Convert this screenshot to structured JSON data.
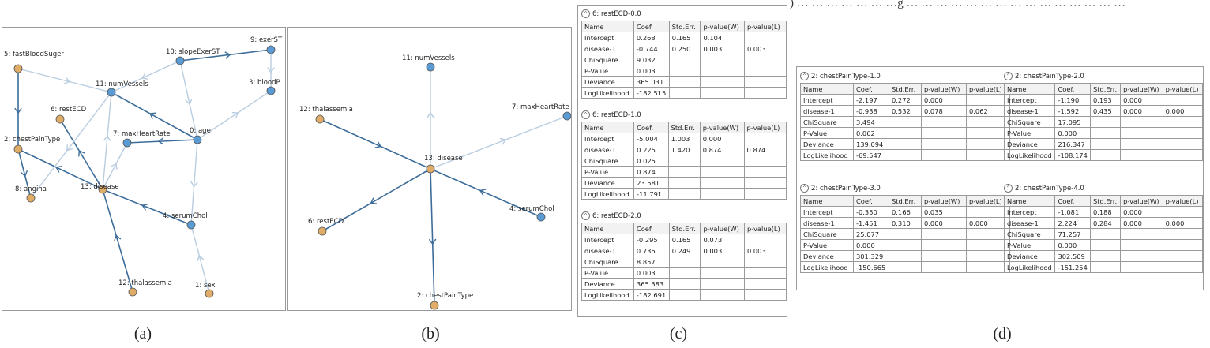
{
  "top_text": ") … … … … … … …g … … … … … … … … … … … … … … …",
  "captions": [
    "(a)",
    "(b)",
    "(c)",
    "(d)"
  ],
  "graph_a": {
    "nodes": [
      {
        "label": "5: fastBloodSuger",
        "color": "orange"
      },
      {
        "label": "10: slopeExerST",
        "color": "blue"
      },
      {
        "label": "9: exerST",
        "color": "blue"
      },
      {
        "label": "3: bloodP",
        "color": "blue"
      },
      {
        "label": "11: numVessels",
        "color": "blue"
      },
      {
        "label": "6: restECD",
        "color": "orange"
      },
      {
        "label": "7: maxHeartRate",
        "color": "blue"
      },
      {
        "label": "0: age",
        "color": "blue"
      },
      {
        "label": "2: chestPainType",
        "color": "orange"
      },
      {
        "label": "8: angina",
        "color": "orange"
      },
      {
        "label": "13: disease",
        "color": "orange"
      },
      {
        "label": "4: serumChol",
        "color": "blue"
      },
      {
        "label": "12: thalassemia",
        "color": "orange"
      },
      {
        "label": "1: sex",
        "color": "orange"
      }
    ]
  },
  "graph_b": {
    "nodes": [
      {
        "label": "11: numVessels",
        "color": "blue"
      },
      {
        "label": "7: maxHeartRate",
        "color": "blue"
      },
      {
        "label": "12: thalassemia",
        "color": "orange"
      },
      {
        "label": "13: disease",
        "color": "orange"
      },
      {
        "label": "4: serumChol",
        "color": "blue"
      },
      {
        "label": "6: restECD",
        "color": "orange"
      },
      {
        "label": "2: chestPainType",
        "color": "orange"
      }
    ]
  },
  "stat_header": [
    "Name",
    "Coef.",
    "Std.Err.",
    "p-value(W)",
    "p-value(L)"
  ],
  "tables_c": [
    {
      "title": "6: restECD-0.0",
      "rows": [
        [
          "Intercept",
          "0.268",
          "0.165",
          "0.104",
          ""
        ],
        [
          "disease-1",
          "-0.744",
          "0.250",
          "0.003",
          "0.003"
        ],
        [
          "ChiSquare",
          "9.032",
          "",
          "",
          ""
        ],
        [
          "P-Value",
          "0.003",
          "",
          "",
          ""
        ],
        [
          "Deviance",
          "365.031",
          "",
          "",
          ""
        ],
        [
          "LogLikelihood",
          "-182.515",
          "",
          "",
          ""
        ]
      ]
    },
    {
      "title": "6: restECD-1.0",
      "rows": [
        [
          "Intercept",
          "-5.004",
          "1.003",
          "0.000",
          ""
        ],
        [
          "disease-1",
          "0.225",
          "1.420",
          "0.874",
          "0.874"
        ],
        [
          "ChiSquare",
          "0.025",
          "",
          "",
          ""
        ],
        [
          "P-Value",
          "0.874",
          "",
          "",
          ""
        ],
        [
          "Deviance",
          "23.581",
          "",
          "",
          ""
        ],
        [
          "LogLikelihood",
          "-11.791",
          "",
          "",
          ""
        ]
      ]
    },
    {
      "title": "6: restECD-2.0",
      "rows": [
        [
          "Intercept",
          "-0.295",
          "0.165",
          "0.073",
          ""
        ],
        [
          "disease-1",
          "0.736",
          "0.249",
          "0.003",
          "0.003"
        ],
        [
          "ChiSquare",
          "8.857",
          "",
          "",
          ""
        ],
        [
          "P-Value",
          "0.003",
          "",
          "",
          ""
        ],
        [
          "Deviance",
          "365.383",
          "",
          "",
          ""
        ],
        [
          "LogLikelihood",
          "-182.691",
          "",
          "",
          ""
        ]
      ]
    }
  ],
  "tables_d": [
    {
      "title": "2: chestPainType-1.0",
      "rows": [
        [
          "Intercept",
          "-2.197",
          "0.272",
          "0.000",
          ""
        ],
        [
          "disease-1",
          "-0.938",
          "0.532",
          "0.078",
          "0.062"
        ],
        [
          "ChiSquare",
          "3.494",
          "",
          "",
          ""
        ],
        [
          "P-Value",
          "0.062",
          "",
          "",
          ""
        ],
        [
          "Deviance",
          "139.094",
          "",
          "",
          ""
        ],
        [
          "LogLikelihood",
          "-69.547",
          "",
          "",
          ""
        ]
      ]
    },
    {
      "title": "2: chestPainType-2.0",
      "rows": [
        [
          "Intercept",
          "-1.190",
          "0.193",
          "0.000",
          ""
        ],
        [
          "disease-1",
          "-1.592",
          "0.435",
          "0.000",
          "0.000"
        ],
        [
          "ChiSquare",
          "17.095",
          "",
          "",
          ""
        ],
        [
          "P-Value",
          "0.000",
          "",
          "",
          ""
        ],
        [
          "Deviance",
          "216.347",
          "",
          "",
          ""
        ],
        [
          "LogLikelihood",
          "-108.174",
          "",
          "",
          ""
        ]
      ]
    },
    {
      "title": "2: chestPainType-3.0",
      "rows": [
        [
          "Intercept",
          "-0.350",
          "0.166",
          "0.035",
          ""
        ],
        [
          "disease-1",
          "-1.451",
          "0.310",
          "0.000",
          "0.000"
        ],
        [
          "ChiSquare",
          "25.077",
          "",
          "",
          ""
        ],
        [
          "P-Value",
          "0.000",
          "",
          "",
          ""
        ],
        [
          "Deviance",
          "301.329",
          "",
          "",
          ""
        ],
        [
          "LogLikelihood",
          "-150.665",
          "",
          "",
          ""
        ]
      ]
    },
    {
      "title": "2: chestPainType-4.0",
      "rows": [
        [
          "Intercept",
          "-1.081",
          "0.188",
          "0.000",
          ""
        ],
        [
          "disease-1",
          "2.224",
          "0.284",
          "0.000",
          "0.000"
        ],
        [
          "ChiSquare",
          "71.257",
          "",
          "",
          ""
        ],
        [
          "P-Value",
          "0.000",
          "",
          "",
          ""
        ],
        [
          "Deviance",
          "302.509",
          "",
          "",
          ""
        ],
        [
          "LogLikelihood",
          "-151.254",
          "",
          "",
          ""
        ]
      ]
    }
  ],
  "colors": {
    "orange": "#e0ad68",
    "blue": "#5b9bd5",
    "dark_edge": "#3c6d9a",
    "light_edge": "#b9cde0"
  }
}
